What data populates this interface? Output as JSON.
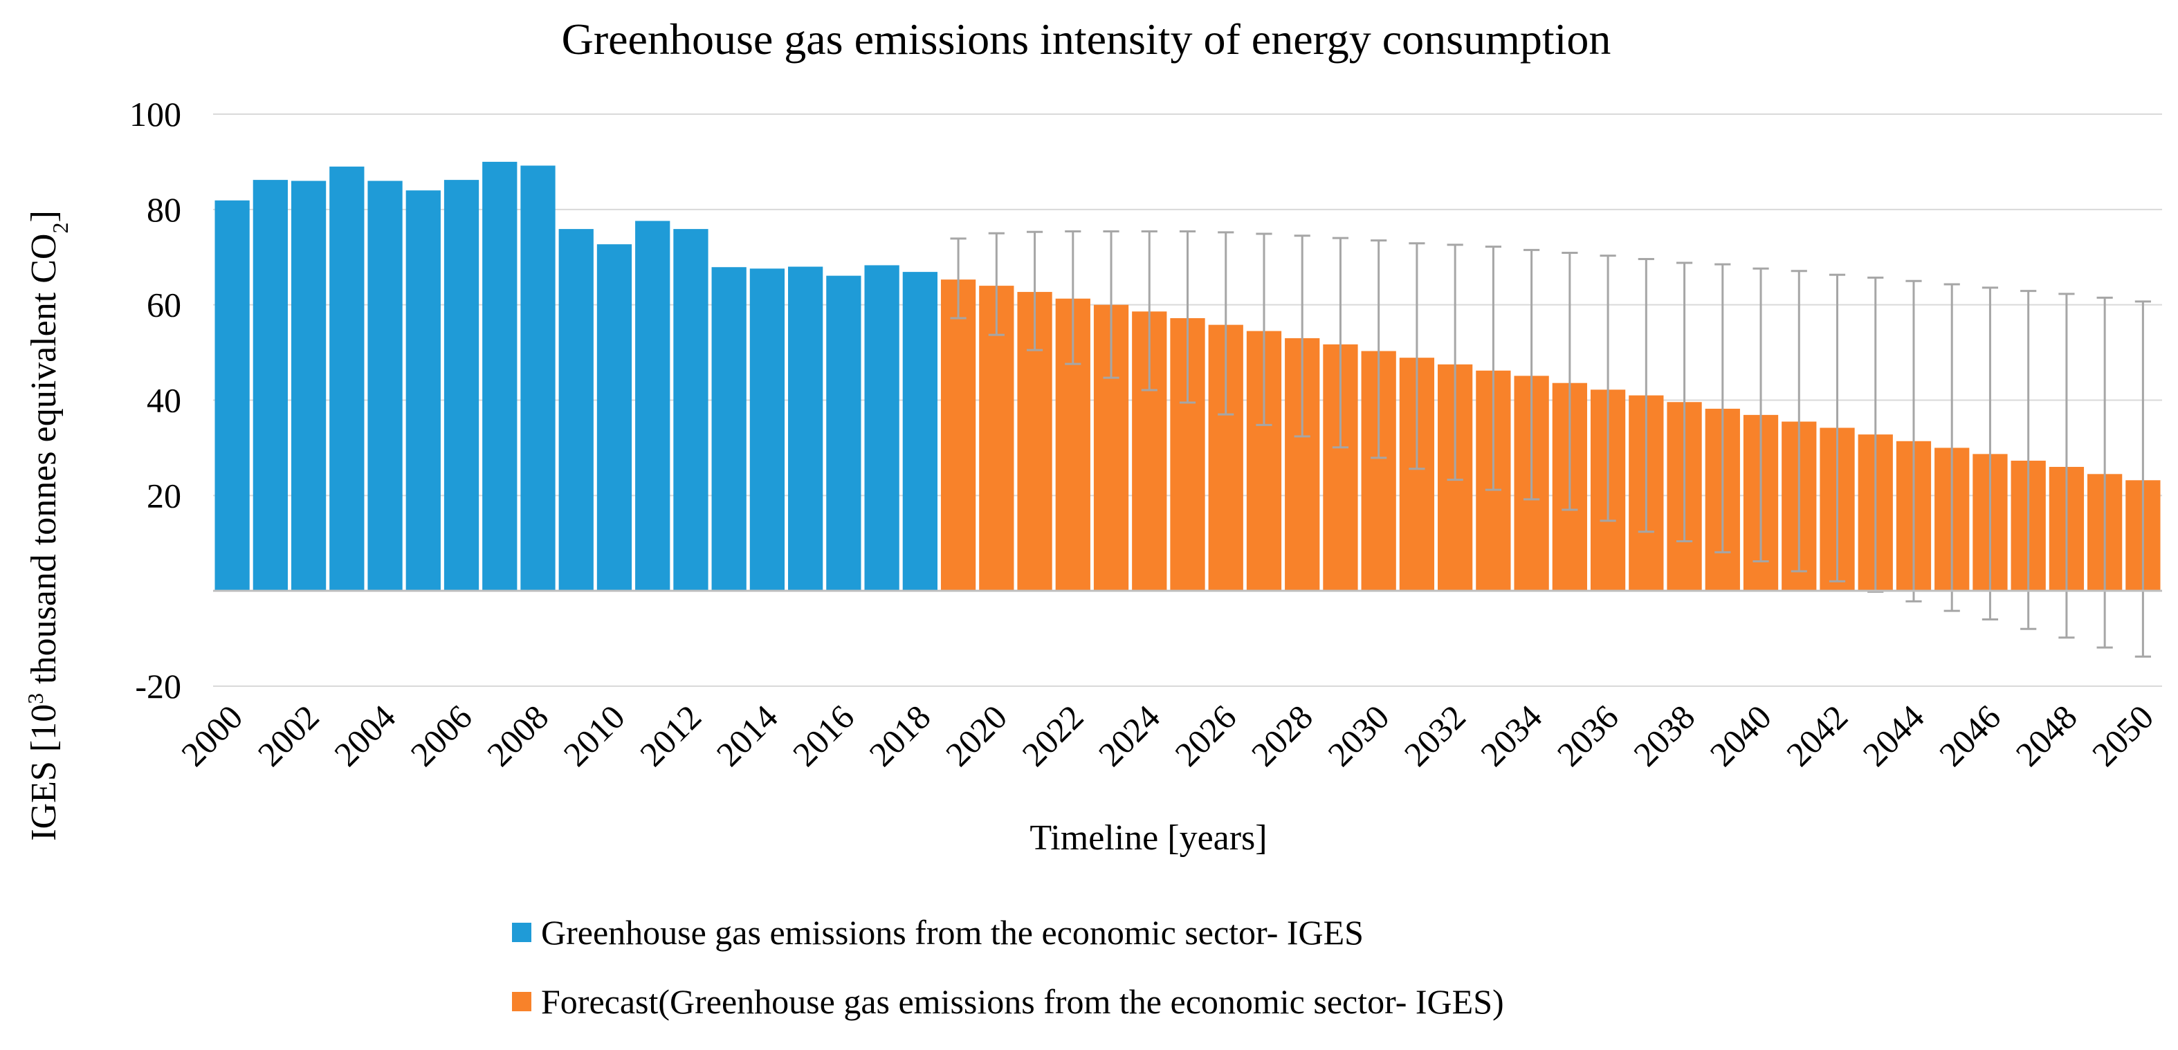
{
  "chart_data": {
    "type": "bar",
    "title": "Greenhouse gas emissions intensity of energy consumption",
    "xlabel": "Timeline [years]",
    "ylabel": {
      "prefix": "IGES  [10",
      "sup": "3",
      "middle": " thousand tonnes equivalent CO",
      "sub": "2",
      "suffix": "]"
    },
    "ylim": [
      -20,
      100
    ],
    "yticks": [
      -20,
      20,
      40,
      60,
      80,
      100
    ],
    "grid": true,
    "x": [
      2000,
      2001,
      2002,
      2003,
      2004,
      2005,
      2006,
      2007,
      2008,
      2009,
      2010,
      2011,
      2012,
      2013,
      2014,
      2015,
      2016,
      2017,
      2018,
      2019,
      2020,
      2021,
      2022,
      2023,
      2024,
      2025,
      2026,
      2027,
      2028,
      2029,
      2030,
      2031,
      2032,
      2033,
      2034,
      2035,
      2036,
      2037,
      2038,
      2039,
      2040,
      2041,
      2042,
      2043,
      2044,
      2045,
      2046,
      2047,
      2048,
      2049,
      2050
    ],
    "xtick_labels": [
      "2000",
      "2002",
      "2004",
      "2006",
      "2008",
      "2010",
      "2012",
      "2014",
      "2016",
      "2018",
      "2020",
      "2022",
      "2024",
      "2026",
      "2028",
      "2030",
      "2032",
      "2034",
      "2036",
      "2038",
      "2040",
      "2042",
      "2044",
      "2046",
      "2048",
      "2050"
    ],
    "series": [
      {
        "name": "Greenhouse gas emissions from the economic sector- IGES",
        "color": "#1F9BD7",
        "values": [
          81.9,
          86.2,
          86.0,
          89.0,
          86.0,
          84.0,
          86.2,
          90.0,
          89.2,
          75.9,
          72.7,
          77.6,
          75.9,
          67.9,
          67.6,
          68.0,
          66.1,
          68.3,
          66.9,
          null,
          null,
          null,
          null,
          null,
          null,
          null,
          null,
          null,
          null,
          null,
          null,
          null,
          null,
          null,
          null,
          null,
          null,
          null,
          null,
          null,
          null,
          null,
          null,
          null,
          null,
          null,
          null,
          null,
          null,
          null,
          null
        ]
      },
      {
        "name": "Forecast(Greenhouse gas emissions from the economic sector- IGES)",
        "color": "#F8822A",
        "values": [
          null,
          null,
          null,
          null,
          null,
          null,
          null,
          null,
          null,
          null,
          null,
          null,
          null,
          null,
          null,
          null,
          null,
          null,
          null,
          65.3,
          64.0,
          62.7,
          61.3,
          60.0,
          58.6,
          57.2,
          55.8,
          54.5,
          53.0,
          51.7,
          50.3,
          48.9,
          47.5,
          46.2,
          45.1,
          43.6,
          42.2,
          41.0,
          39.6,
          38.2,
          36.9,
          35.5,
          34.2,
          32.8,
          31.4,
          30.0,
          28.7,
          27.3,
          26.0,
          24.5,
          23.2
        ]
      }
    ],
    "error_bars": {
      "color": "#A6A6A6",
      "upper": [
        null,
        null,
        null,
        null,
        null,
        null,
        null,
        null,
        null,
        null,
        null,
        null,
        null,
        null,
        null,
        null,
        null,
        null,
        null,
        73.9,
        75.0,
        75.3,
        75.4,
        75.4,
        75.4,
        75.4,
        75.2,
        74.9,
        74.5,
        74.0,
        73.5,
        72.9,
        72.6,
        72.2,
        71.5,
        70.9,
        70.3,
        69.6,
        68.8,
        68.5,
        67.6,
        67.1,
        66.3,
        65.7,
        65.0,
        64.3,
        63.6,
        62.9,
        62.3,
        61.5,
        60.7
      ],
      "lower": [
        null,
        null,
        null,
        null,
        null,
        null,
        null,
        null,
        null,
        null,
        null,
        null,
        null,
        null,
        null,
        null,
        null,
        null,
        null,
        57.2,
        53.7,
        50.5,
        47.6,
        44.7,
        42.1,
        39.5,
        37.0,
        34.8,
        32.4,
        30.1,
        27.9,
        25.6,
        23.3,
        21.2,
        19.2,
        17.0,
        14.7,
        12.4,
        10.4,
        8.1,
        6.2,
        4.1,
        2.0,
        -0.2,
        -2.2,
        -4.2,
        -6.0,
        -8.0,
        -9.8,
        -11.9,
        -13.8
      ]
    },
    "legend": "bottom-center"
  }
}
